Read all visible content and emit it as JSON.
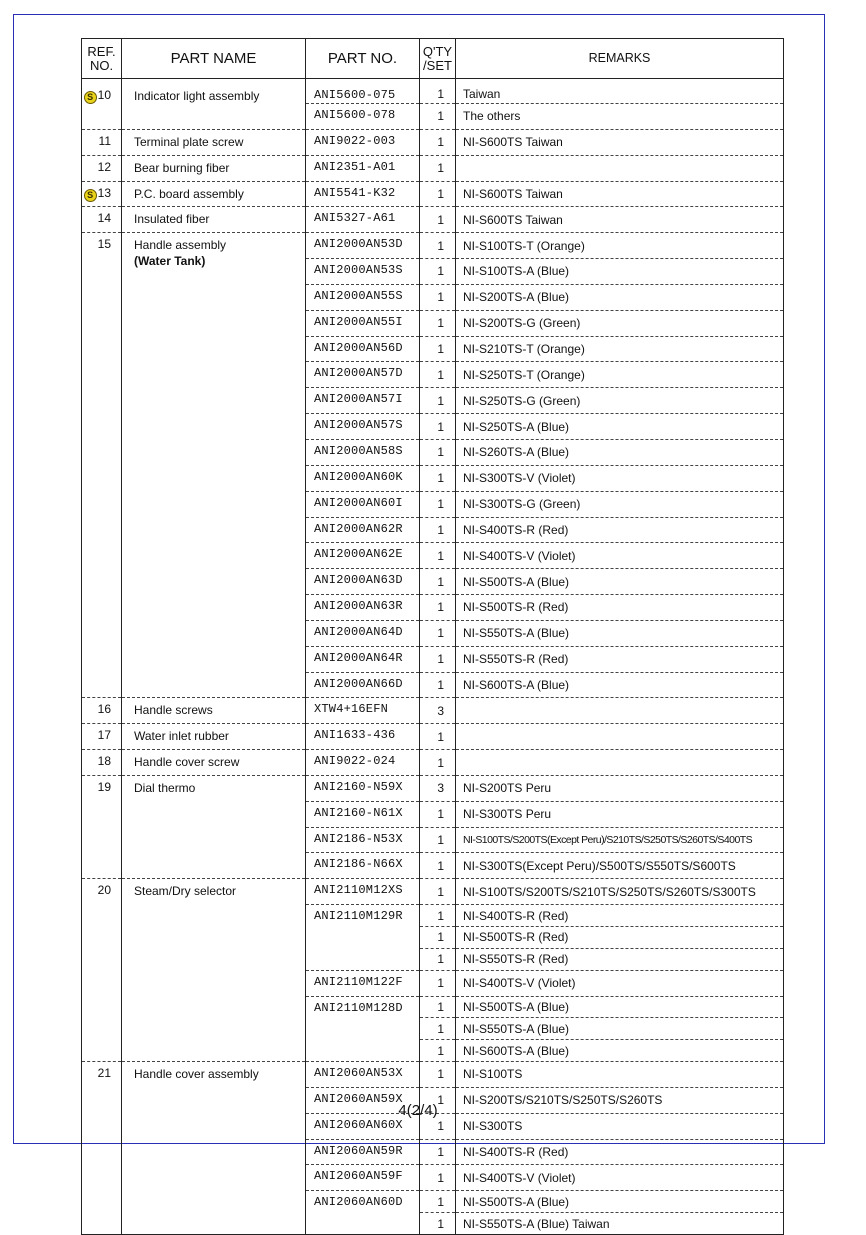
{
  "header": {
    "ref_no": "REF. NO.",
    "ref_line1": "REF.",
    "ref_line2": "NO.",
    "part_name": "PART NAME",
    "part_no": "PART NO.",
    "qty_line1": "Q'TY",
    "qty_line2": "/SET",
    "remarks": "REMARKS"
  },
  "colors": {
    "frame": "#2a2fb8",
    "s_mark": "#e8d21a"
  },
  "s_mark_label": "S",
  "items": [
    {
      "ref": "10",
      "s_mark": true,
      "name": "Indicator light assembly",
      "parts": [
        {
          "no": "ANI5600-075",
          "rows": [
            {
              "qty": "1",
              "remarks": "Taiwan"
            }
          ]
        },
        {
          "no": "ANI5600-078",
          "rows": [
            {
              "qty": "1",
              "remarks": "The others"
            }
          ]
        }
      ]
    },
    {
      "ref": "11",
      "name": "Terminal plate screw",
      "parts": [
        {
          "no": "ANI9022-003",
          "rows": [
            {
              "qty": "1",
              "remarks": "NI-S600TS   Taiwan"
            }
          ]
        }
      ]
    },
    {
      "ref": "12",
      "name": "Bear burning fiber",
      "parts": [
        {
          "no": "ANI2351-A01",
          "rows": [
            {
              "qty": "1",
              "remarks": ""
            }
          ]
        }
      ]
    },
    {
      "ref": "13",
      "s_mark": true,
      "name": "P.C. board assembly",
      "parts": [
        {
          "no": "ANI5541-K32",
          "rows": [
            {
              "qty": "1",
              "remarks": "NI-S600TS   Taiwan"
            }
          ]
        }
      ]
    },
    {
      "ref": "14",
      "name": "Insulated fiber",
      "parts": [
        {
          "no": "ANI5327-A61",
          "rows": [
            {
              "qty": "1",
              "remarks": "NI-S600TS   Taiwan"
            }
          ]
        }
      ]
    },
    {
      "ref": "15",
      "name": "Handle assembly",
      "sub": "(Water Tank)",
      "parts": [
        {
          "no": "ANI2000AN53D",
          "rows": [
            {
              "qty": "1",
              "remarks": "NI-S100TS-T (Orange)"
            }
          ]
        },
        {
          "no": "ANI2000AN53S",
          "rows": [
            {
              "qty": "1",
              "remarks": "NI-S100TS-A (Blue)"
            }
          ]
        },
        {
          "no": "ANI2000AN55S",
          "rows": [
            {
              "qty": "1",
              "remarks": "NI-S200TS-A (Blue)"
            }
          ]
        },
        {
          "no": "ANI2000AN55I",
          "rows": [
            {
              "qty": "1",
              "remarks": "NI-S200TS-G (Green)"
            }
          ]
        },
        {
          "no": "ANI2000AN56D",
          "rows": [
            {
              "qty": "1",
              "remarks": "NI-S210TS-T (Orange)"
            }
          ]
        },
        {
          "no": "ANI2000AN57D",
          "rows": [
            {
              "qty": "1",
              "remarks": "NI-S250TS-T (Orange)"
            }
          ]
        },
        {
          "no": "ANI2000AN57I",
          "rows": [
            {
              "qty": "1",
              "remarks": "NI-S250TS-G (Green)"
            }
          ]
        },
        {
          "no": "ANI2000AN57S",
          "rows": [
            {
              "qty": "1",
              "remarks": "NI-S250TS-A (Blue)"
            }
          ]
        },
        {
          "no": "ANI2000AN58S",
          "rows": [
            {
              "qty": "1",
              "remarks": "NI-S260TS-A (Blue)"
            }
          ]
        },
        {
          "no": "ANI2000AN60K",
          "rows": [
            {
              "qty": "1",
              "remarks": "NI-S300TS-V (Violet)"
            }
          ]
        },
        {
          "no": "ANI2000AN60I",
          "rows": [
            {
              "qty": "1",
              "remarks": "NI-S300TS-G (Green)"
            }
          ]
        },
        {
          "no": "ANI2000AN62R",
          "rows": [
            {
              "qty": "1",
              "remarks": "NI-S400TS-R (Red)"
            }
          ]
        },
        {
          "no": "ANI2000AN62E",
          "rows": [
            {
              "qty": "1",
              "remarks": "NI-S400TS-V (Violet)"
            }
          ]
        },
        {
          "no": "ANI2000AN63D",
          "rows": [
            {
              "qty": "1",
              "remarks": "NI-S500TS-A (Blue)"
            }
          ]
        },
        {
          "no": "ANI2000AN63R",
          "rows": [
            {
              "qty": "1",
              "remarks": "NI-S500TS-R (Red)"
            }
          ]
        },
        {
          "no": "ANI2000AN64D",
          "rows": [
            {
              "qty": "1",
              "remarks": "NI-S550TS-A (Blue)"
            }
          ]
        },
        {
          "no": "ANI2000AN64R",
          "rows": [
            {
              "qty": "1",
              "remarks": "NI-S550TS-R (Red)"
            }
          ]
        },
        {
          "no": "ANI2000AN66D",
          "rows": [
            {
              "qty": "1",
              "remarks": "NI-S600TS-A (Blue)"
            }
          ]
        }
      ]
    },
    {
      "ref": "16",
      "name": "Handle screws",
      "parts": [
        {
          "no": "XTW4+16EFN",
          "rows": [
            {
              "qty": "3",
              "remarks": ""
            }
          ]
        }
      ]
    },
    {
      "ref": "17",
      "name": "Water inlet rubber",
      "parts": [
        {
          "no": "ANI1633-436",
          "rows": [
            {
              "qty": "1",
              "remarks": ""
            }
          ]
        }
      ]
    },
    {
      "ref": "18",
      "name": "Handle cover screw",
      "parts": [
        {
          "no": "ANI9022-024",
          "rows": [
            {
              "qty": "1",
              "remarks": ""
            }
          ]
        }
      ]
    },
    {
      "ref": "19",
      "name": "Dial thermo",
      "parts": [
        {
          "no": "ANI2160-N59X",
          "rows": [
            {
              "qty": "3",
              "remarks": "NI-S200TS   Peru"
            }
          ]
        },
        {
          "no": "ANI2160-N61X",
          "rows": [
            {
              "qty": "1",
              "remarks": "NI-S300TS   Peru"
            }
          ]
        },
        {
          "no": "ANI2186-N53X",
          "rows": [
            {
              "qty": "1",
              "remarks": "NI-S100TS/S200TS(Except Peru)/S210TS/S250TS/S260TS/S400TS"
            }
          ]
        },
        {
          "no": "ANI2186-N66X",
          "rows": [
            {
              "qty": "1",
              "remarks": "NI-S300TS(Except Peru)/S500TS/S550TS/S600TS"
            }
          ]
        }
      ]
    },
    {
      "ref": "20",
      "name": "Steam/Dry selector",
      "parts": [
        {
          "no": "ANI2110M12XS",
          "rows": [
            {
              "qty": "1",
              "remarks": "NI-S100TS/S200TS/S210TS/S250TS/S260TS/S300TS"
            }
          ]
        },
        {
          "no": "ANI2110M129R",
          "rows": [
            {
              "qty": "1",
              "remarks": "NI-S400TS-R (Red)"
            },
            {
              "qty": "1",
              "remarks": "NI-S500TS-R (Red)"
            },
            {
              "qty": "1",
              "remarks": "NI-S550TS-R (Red)"
            }
          ]
        },
        {
          "no": "ANI2110M122F",
          "rows": [
            {
              "qty": "1",
              "remarks": "NI-S400TS-V (Violet)"
            }
          ]
        },
        {
          "no": "ANI2110M128D",
          "rows": [
            {
              "qty": "1",
              "remarks": "NI-S500TS-A (Blue)"
            },
            {
              "qty": "1",
              "remarks": "NI-S550TS-A (Blue)"
            },
            {
              "qty": "1",
              "remarks": "NI-S600TS-A (Blue)"
            }
          ]
        }
      ]
    },
    {
      "ref": "21",
      "name": "Handle cover  assembly",
      "parts": [
        {
          "no": "ANI2060AN53X",
          "rows": [
            {
              "qty": "1",
              "remarks": "NI-S100TS"
            }
          ]
        },
        {
          "no": "ANI2060AN59X",
          "rows": [
            {
              "qty": "1",
              "remarks": "NI-S200TS/S210TS/S250TS/S260TS"
            }
          ]
        },
        {
          "no": "ANI2060AN60X",
          "rows": [
            {
              "qty": "1",
              "remarks": "NI-S300TS"
            }
          ]
        },
        {
          "no": "ANI2060AN59R",
          "rows": [
            {
              "qty": "1",
              "remarks": "NI-S400TS-R (Red)"
            }
          ]
        },
        {
          "no": "ANI2060AN59F",
          "rows": [
            {
              "qty": "1",
              "remarks": "NI-S400TS-V (Violet)"
            }
          ]
        },
        {
          "no": "ANI2060AN60D",
          "rows": [
            {
              "qty": "1",
              "remarks": "NI-S500TS-A (Blue)"
            },
            {
              "qty": "1",
              "remarks": "NI-S550TS-A (Blue)  Taiwan"
            }
          ]
        }
      ]
    }
  ],
  "page_number": "4(2/4)"
}
